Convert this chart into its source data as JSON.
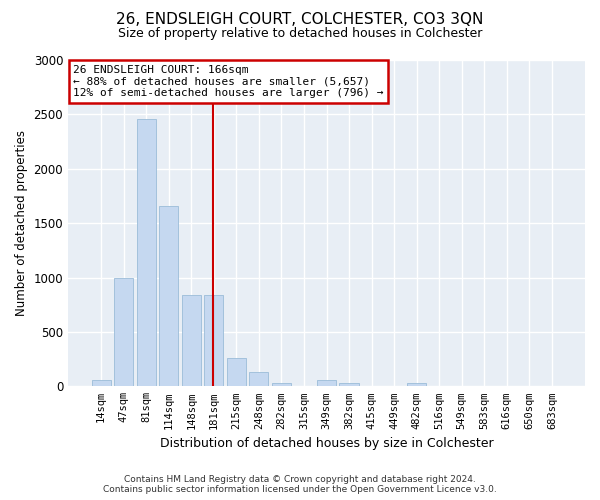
{
  "title": "26, ENDSLEIGH COURT, COLCHESTER, CO3 3QN",
  "subtitle": "Size of property relative to detached houses in Colchester",
  "xlabel": "Distribution of detached houses by size in Colchester",
  "ylabel": "Number of detached properties",
  "categories": [
    "14sqm",
    "47sqm",
    "81sqm",
    "114sqm",
    "148sqm",
    "181sqm",
    "215sqm",
    "248sqm",
    "282sqm",
    "315sqm",
    "349sqm",
    "382sqm",
    "415sqm",
    "449sqm",
    "482sqm",
    "516sqm",
    "549sqm",
    "583sqm",
    "616sqm",
    "650sqm",
    "683sqm"
  ],
  "values": [
    60,
    1000,
    2460,
    1660,
    840,
    840,
    260,
    130,
    30,
    0,
    55,
    30,
    0,
    0,
    30,
    0,
    0,
    0,
    0,
    0,
    0
  ],
  "bar_color": "#c5d8f0",
  "bar_edgecolor": "#9bbcd8",
  "vline_color": "#cc0000",
  "annotation_title": "26 ENDSLEIGH COURT: 166sqm",
  "annotation_line1": "← 88% of detached houses are smaller (5,657)",
  "annotation_line2": "12% of semi-detached houses are larger (796) →",
  "annotation_box_edgecolor": "#cc0000",
  "ylim": [
    0,
    3000
  ],
  "yticks": [
    0,
    500,
    1000,
    1500,
    2000,
    2500,
    3000
  ],
  "background_color": "#ffffff",
  "plot_background": "#e8eef5",
  "grid_color": "#ffffff",
  "footer_line1": "Contains HM Land Registry data © Crown copyright and database right 2024.",
  "footer_line2": "Contains public sector information licensed under the Open Government Licence v3.0."
}
